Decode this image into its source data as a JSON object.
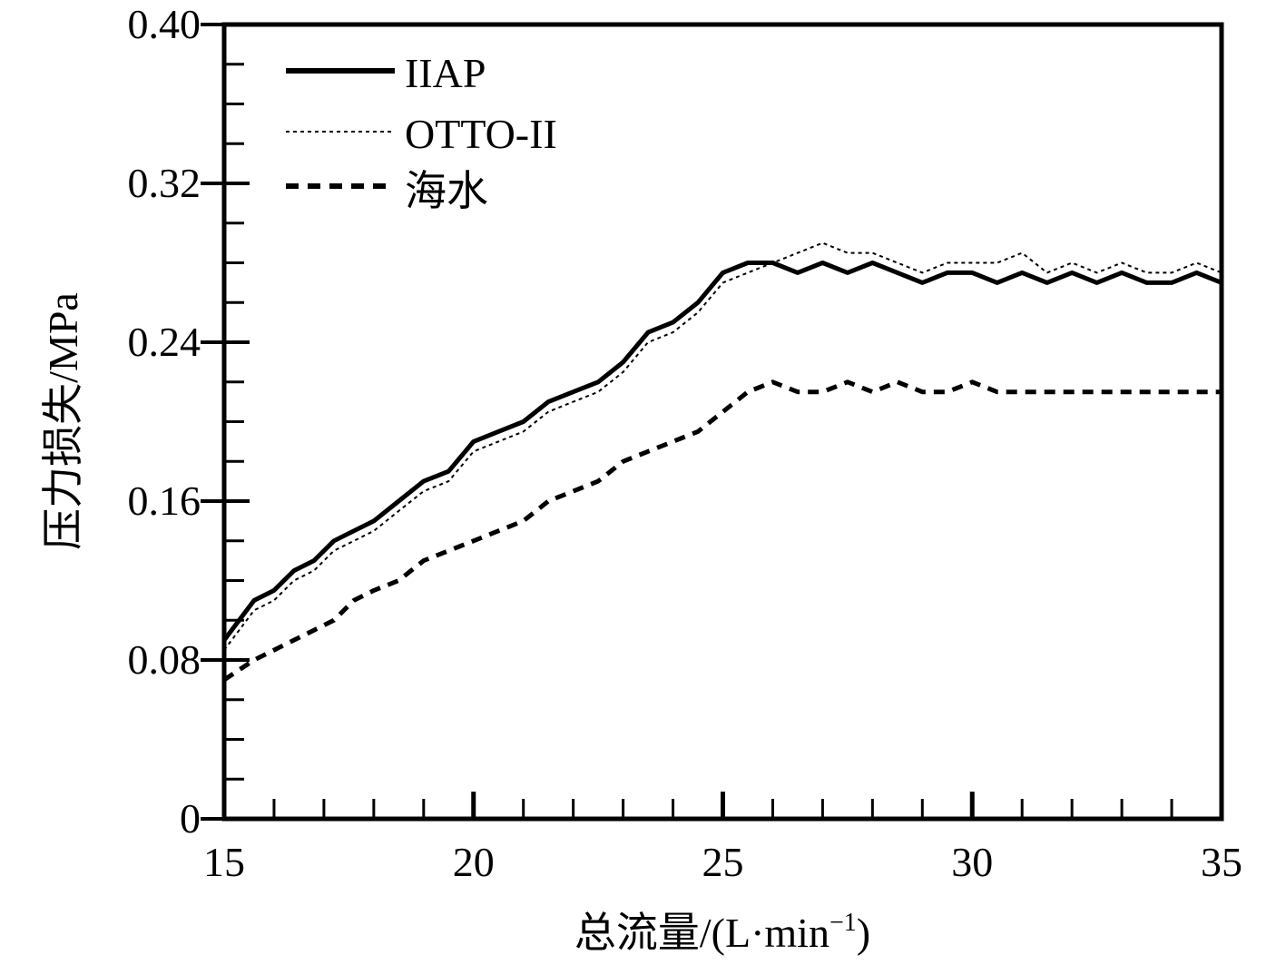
{
  "chart_data": {
    "type": "line",
    "title": "",
    "xlabel": "总流量/(L·min",
    "xlabel_sup": "−1",
    "xlabel_close": ")",
    "ylabel": "压力损失/MPa",
    "xlim": [
      15,
      35
    ],
    "ylim": [
      0,
      0.4
    ],
    "x_ticks": [
      15,
      20,
      25,
      30,
      35
    ],
    "x_tick_labels": [
      "15",
      "20",
      "25",
      "30",
      "35"
    ],
    "y_ticks": [
      0,
      0.08,
      0.16,
      0.24,
      0.32,
      0.4
    ],
    "y_tick_labels": [
      "0",
      "0.08",
      "0.16",
      "0.24",
      "0.32",
      "0.40"
    ],
    "legend_position": "top-left",
    "series": [
      {
        "name": "IIAP",
        "style": "solid",
        "color": "#000000",
        "x": [
          15.0,
          15.3,
          15.6,
          16.0,
          16.4,
          16.8,
          17.2,
          17.6,
          18.0,
          18.5,
          19.0,
          19.5,
          20.0,
          20.5,
          21.0,
          21.5,
          22.0,
          22.5,
          23.0,
          23.5,
          24.0,
          24.5,
          25.0,
          25.5,
          26.0,
          26.5,
          27.0,
          27.5,
          28.0,
          28.5,
          29.0,
          29.5,
          30.0,
          30.5,
          31.0,
          31.5,
          32.0,
          32.5,
          33.0,
          33.5,
          34.0,
          34.5,
          35.0
        ],
        "y": [
          0.09,
          0.1,
          0.11,
          0.115,
          0.125,
          0.13,
          0.14,
          0.145,
          0.15,
          0.16,
          0.17,
          0.175,
          0.19,
          0.195,
          0.2,
          0.21,
          0.215,
          0.22,
          0.23,
          0.245,
          0.25,
          0.26,
          0.275,
          0.28,
          0.28,
          0.275,
          0.28,
          0.275,
          0.28,
          0.275,
          0.27,
          0.275,
          0.275,
          0.27,
          0.275,
          0.27,
          0.275,
          0.27,
          0.275,
          0.27,
          0.27,
          0.275,
          0.27
        ]
      },
      {
        "name": "OTTO-II",
        "style": "dotted",
        "color": "#000000",
        "x": [
          15.0,
          15.3,
          15.6,
          16.0,
          16.4,
          16.8,
          17.2,
          17.6,
          18.0,
          18.5,
          19.0,
          19.5,
          20.0,
          20.5,
          21.0,
          21.5,
          22.0,
          22.5,
          23.0,
          23.5,
          24.0,
          24.5,
          25.0,
          25.5,
          26.0,
          26.5,
          27.0,
          27.5,
          28.0,
          28.5,
          29.0,
          29.5,
          30.0,
          30.5,
          31.0,
          31.5,
          32.0,
          32.5,
          33.0,
          33.5,
          34.0,
          34.5,
          35.0
        ],
        "y": [
          0.085,
          0.095,
          0.105,
          0.11,
          0.12,
          0.125,
          0.135,
          0.14,
          0.145,
          0.155,
          0.165,
          0.17,
          0.185,
          0.19,
          0.195,
          0.205,
          0.21,
          0.215,
          0.225,
          0.24,
          0.245,
          0.255,
          0.27,
          0.275,
          0.28,
          0.285,
          0.29,
          0.285,
          0.285,
          0.28,
          0.275,
          0.28,
          0.28,
          0.28,
          0.285,
          0.275,
          0.28,
          0.275,
          0.28,
          0.275,
          0.275,
          0.28,
          0.275
        ]
      },
      {
        "name": "海水",
        "style": "dashed",
        "color": "#000000",
        "x": [
          15.0,
          15.3,
          15.6,
          16.0,
          16.4,
          16.8,
          17.2,
          17.6,
          18.0,
          18.5,
          19.0,
          19.5,
          20.0,
          20.5,
          21.0,
          21.5,
          22.0,
          22.5,
          23.0,
          23.5,
          24.0,
          24.5,
          25.0,
          25.5,
          26.0,
          26.5,
          27.0,
          27.5,
          28.0,
          28.5,
          29.0,
          29.5,
          30.0,
          30.5,
          31.0,
          31.5,
          32.0,
          32.5,
          33.0,
          33.5,
          34.0,
          34.5,
          35.0
        ],
        "y": [
          0.07,
          0.075,
          0.08,
          0.085,
          0.09,
          0.095,
          0.1,
          0.11,
          0.115,
          0.12,
          0.13,
          0.135,
          0.14,
          0.145,
          0.15,
          0.16,
          0.165,
          0.17,
          0.18,
          0.185,
          0.19,
          0.195,
          0.205,
          0.215,
          0.22,
          0.215,
          0.215,
          0.22,
          0.215,
          0.22,
          0.215,
          0.215,
          0.22,
          0.215,
          0.215,
          0.215,
          0.215,
          0.215,
          0.215,
          0.215,
          0.215,
          0.215,
          0.215
        ]
      }
    ]
  }
}
